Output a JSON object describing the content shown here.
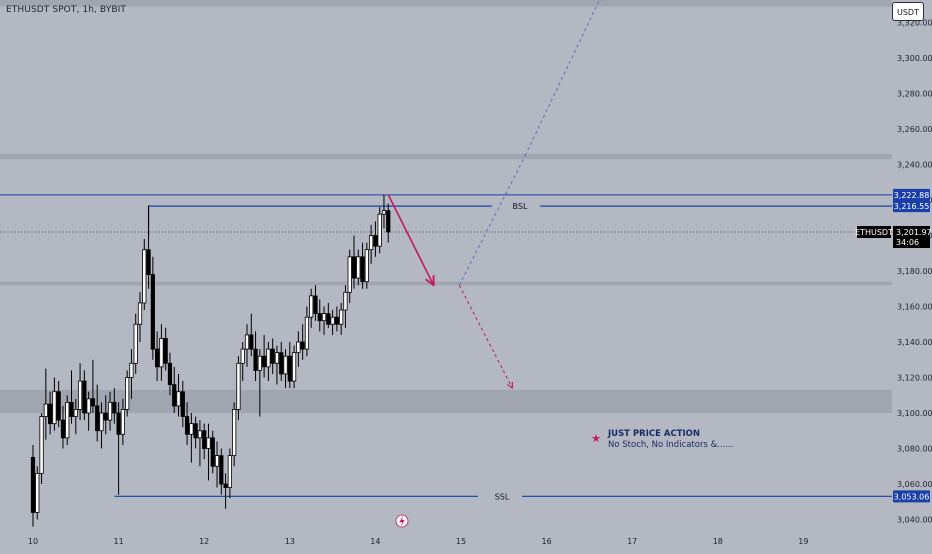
{
  "header": {
    "title": "ETHUSDT SPOT, 1h, BYBIT",
    "currency_label": "USDT"
  },
  "chart_data": {
    "type": "candlestick",
    "symbol": "ETHUSDT",
    "x_ticks": [
      "10",
      "11",
      "12",
      "13",
      "14",
      "15",
      "16",
      "17",
      "18",
      "19"
    ],
    "y_ticks": [
      "3,040.00",
      "3,060.00",
      "3,080.00",
      "3,100.00",
      "3,120.00",
      "3,140.00",
      "3,160.00",
      "3,180.00",
      "3,200.00",
      "3,220.00",
      "3,240.00",
      "3,260.00",
      "3,280.00",
      "3,300.00",
      "3,320.00"
    ],
    "ylim": [
      3038,
      3338
    ],
    "price_badges": {
      "high": "3,222.88",
      "bsl": "3,216.55",
      "last_symbol": "ETHUSDT",
      "last": "3,201.97",
      "countdown": "34:06",
      "ssl": "3,053.06"
    },
    "levels": [
      {
        "label": "",
        "value": 3222.88
      },
      {
        "label": "BSL",
        "value": 3216.55
      },
      {
        "label": "",
        "value": 3201.97
      },
      {
        "label": "SSL",
        "value": 3053.06
      }
    ],
    "zones": [
      {
        "from": 3100,
        "to": 3113
      },
      {
        "from": 3172,
        "to": 3174
      },
      {
        "from": 3243,
        "to": 3246
      },
      {
        "from": 3329,
        "to": 3338
      }
    ],
    "candles": [
      {
        "t": 10.0,
        "o": 3075,
        "h": 3082,
        "l": 3036,
        "c": 3044
      },
      {
        "t": 10.05,
        "o": 3044,
        "h": 3070,
        "l": 3040,
        "c": 3066
      },
      {
        "t": 10.1,
        "o": 3066,
        "h": 3100,
        "l": 3060,
        "c": 3098
      },
      {
        "t": 10.15,
        "o": 3098,
        "h": 3125,
        "l": 3085,
        "c": 3105
      },
      {
        "t": 10.2,
        "o": 3105,
        "h": 3112,
        "l": 3088,
        "c": 3094
      },
      {
        "t": 10.25,
        "o": 3094,
        "h": 3120,
        "l": 3090,
        "c": 3112
      },
      {
        "t": 10.3,
        "o": 3112,
        "h": 3118,
        "l": 3092,
        "c": 3096
      },
      {
        "t": 10.35,
        "o": 3096,
        "h": 3104,
        "l": 3080,
        "c": 3086
      },
      {
        "t": 10.4,
        "o": 3086,
        "h": 3110,
        "l": 3082,
        "c": 3106
      },
      {
        "t": 10.45,
        "o": 3106,
        "h": 3124,
        "l": 3094,
        "c": 3098
      },
      {
        "t": 10.5,
        "o": 3098,
        "h": 3108,
        "l": 3088,
        "c": 3102
      },
      {
        "t": 10.55,
        "o": 3102,
        "h": 3128,
        "l": 3096,
        "c": 3118
      },
      {
        "t": 10.6,
        "o": 3118,
        "h": 3124,
        "l": 3096,
        "c": 3100
      },
      {
        "t": 10.65,
        "o": 3100,
        "h": 3112,
        "l": 3090,
        "c": 3108
      },
      {
        "t": 10.7,
        "o": 3108,
        "h": 3130,
        "l": 3100,
        "c": 3104
      },
      {
        "t": 10.75,
        "o": 3104,
        "h": 3116,
        "l": 3084,
        "c": 3090
      },
      {
        "t": 10.8,
        "o": 3090,
        "h": 3106,
        "l": 3080,
        "c": 3100
      },
      {
        "t": 10.85,
        "o": 3100,
        "h": 3110,
        "l": 3088,
        "c": 3096
      },
      {
        "t": 10.9,
        "o": 3096,
        "h": 3112,
        "l": 3090,
        "c": 3106
      },
      {
        "t": 10.95,
        "o": 3106,
        "h": 3114,
        "l": 3094,
        "c": 3100
      },
      {
        "t": 11.0,
        "o": 3100,
        "h": 3106,
        "l": 3054,
        "c": 3088
      },
      {
        "t": 11.05,
        "o": 3088,
        "h": 3108,
        "l": 3082,
        "c": 3102
      },
      {
        "t": 11.1,
        "o": 3102,
        "h": 3124,
        "l": 3098,
        "c": 3120
      },
      {
        "t": 11.15,
        "o": 3120,
        "h": 3136,
        "l": 3108,
        "c": 3128
      },
      {
        "t": 11.2,
        "o": 3128,
        "h": 3156,
        "l": 3122,
        "c": 3150
      },
      {
        "t": 11.25,
        "o": 3150,
        "h": 3168,
        "l": 3140,
        "c": 3162
      },
      {
        "t": 11.3,
        "o": 3162,
        "h": 3198,
        "l": 3158,
        "c": 3192
      },
      {
        "t": 11.35,
        "o": 3192,
        "h": 3217,
        "l": 3170,
        "c": 3178
      },
      {
        "t": 11.4,
        "o": 3178,
        "h": 3188,
        "l": 3130,
        "c": 3136
      },
      {
        "t": 11.45,
        "o": 3136,
        "h": 3146,
        "l": 3118,
        "c": 3126
      },
      {
        "t": 11.5,
        "o": 3126,
        "h": 3150,
        "l": 3118,
        "c": 3142
      },
      {
        "t": 11.55,
        "o": 3142,
        "h": 3148,
        "l": 3124,
        "c": 3128
      },
      {
        "t": 11.6,
        "o": 3128,
        "h": 3134,
        "l": 3110,
        "c": 3116
      },
      {
        "t": 11.65,
        "o": 3116,
        "h": 3126,
        "l": 3100,
        "c": 3104
      },
      {
        "t": 11.7,
        "o": 3104,
        "h": 3122,
        "l": 3098,
        "c": 3112
      },
      {
        "t": 11.75,
        "o": 3112,
        "h": 3118,
        "l": 3092,
        "c": 3098
      },
      {
        "t": 11.8,
        "o": 3098,
        "h": 3106,
        "l": 3082,
        "c": 3088
      },
      {
        "t": 11.85,
        "o": 3088,
        "h": 3100,
        "l": 3072,
        "c": 3094
      },
      {
        "t": 11.9,
        "o": 3094,
        "h": 3098,
        "l": 3080,
        "c": 3086
      },
      {
        "t": 11.95,
        "o": 3086,
        "h": 3096,
        "l": 3070,
        "c": 3090
      },
      {
        "t": 12.0,
        "o": 3090,
        "h": 3094,
        "l": 3074,
        "c": 3080
      },
      {
        "t": 12.05,
        "o": 3080,
        "h": 3094,
        "l": 3062,
        "c": 3086
      },
      {
        "t": 12.1,
        "o": 3086,
        "h": 3090,
        "l": 3066,
        "c": 3070
      },
      {
        "t": 12.15,
        "o": 3070,
        "h": 3084,
        "l": 3058,
        "c": 3076
      },
      {
        "t": 12.2,
        "o": 3076,
        "h": 3080,
        "l": 3054,
        "c": 3060
      },
      {
        "t": 12.25,
        "o": 3060,
        "h": 3066,
        "l": 3046,
        "c": 3058
      },
      {
        "t": 12.3,
        "o": 3058,
        "h": 3080,
        "l": 3052,
        "c": 3076
      },
      {
        "t": 12.35,
        "o": 3076,
        "h": 3106,
        "l": 3070,
        "c": 3102
      },
      {
        "t": 12.4,
        "o": 3102,
        "h": 3132,
        "l": 3096,
        "c": 3128
      },
      {
        "t": 12.45,
        "o": 3128,
        "h": 3140,
        "l": 3118,
        "c": 3136
      },
      {
        "t": 12.5,
        "o": 3136,
        "h": 3150,
        "l": 3126,
        "c": 3144
      },
      {
        "t": 12.55,
        "o": 3144,
        "h": 3156,
        "l": 3132,
        "c": 3136
      },
      {
        "t": 12.6,
        "o": 3136,
        "h": 3146,
        "l": 3118,
        "c": 3124
      },
      {
        "t": 12.65,
        "o": 3124,
        "h": 3136,
        "l": 3098,
        "c": 3132
      },
      {
        "t": 12.7,
        "o": 3132,
        "h": 3144,
        "l": 3120,
        "c": 3126
      },
      {
        "t": 12.75,
        "o": 3126,
        "h": 3140,
        "l": 3118,
        "c": 3136
      },
      {
        "t": 12.8,
        "o": 3136,
        "h": 3142,
        "l": 3122,
        "c": 3128
      },
      {
        "t": 12.85,
        "o": 3128,
        "h": 3138,
        "l": 3116,
        "c": 3134
      },
      {
        "t": 12.9,
        "o": 3134,
        "h": 3140,
        "l": 3118,
        "c": 3122
      },
      {
        "t": 12.95,
        "o": 3122,
        "h": 3136,
        "l": 3114,
        "c": 3132
      },
      {
        "t": 13.0,
        "o": 3132,
        "h": 3140,
        "l": 3114,
        "c": 3118
      },
      {
        "t": 13.05,
        "o": 3118,
        "h": 3138,
        "l": 3114,
        "c": 3134
      },
      {
        "t": 13.1,
        "o": 3134,
        "h": 3146,
        "l": 3126,
        "c": 3140
      },
      {
        "t": 13.15,
        "o": 3140,
        "h": 3150,
        "l": 3130,
        "c": 3136
      },
      {
        "t": 13.2,
        "o": 3136,
        "h": 3160,
        "l": 3132,
        "c": 3154
      },
      {
        "t": 13.25,
        "o": 3154,
        "h": 3170,
        "l": 3148,
        "c": 3166
      },
      {
        "t": 13.3,
        "o": 3166,
        "h": 3172,
        "l": 3152,
        "c": 3156
      },
      {
        "t": 13.35,
        "o": 3156,
        "h": 3164,
        "l": 3146,
        "c": 3152
      },
      {
        "t": 13.4,
        "o": 3152,
        "h": 3160,
        "l": 3144,
        "c": 3156
      },
      {
        "t": 13.45,
        "o": 3156,
        "h": 3162,
        "l": 3148,
        "c": 3150
      },
      {
        "t": 13.5,
        "o": 3150,
        "h": 3158,
        "l": 3144,
        "c": 3154
      },
      {
        "t": 13.55,
        "o": 3154,
        "h": 3160,
        "l": 3146,
        "c": 3150
      },
      {
        "t": 13.6,
        "o": 3150,
        "h": 3162,
        "l": 3144,
        "c": 3158
      },
      {
        "t": 13.65,
        "o": 3158,
        "h": 3172,
        "l": 3148,
        "c": 3168
      },
      {
        "t": 13.7,
        "o": 3168,
        "h": 3192,
        "l": 3162,
        "c": 3188
      },
      {
        "t": 13.75,
        "o": 3188,
        "h": 3200,
        "l": 3170,
        "c": 3176
      },
      {
        "t": 13.8,
        "o": 3176,
        "h": 3192,
        "l": 3172,
        "c": 3188
      },
      {
        "t": 13.85,
        "o": 3188,
        "h": 3196,
        "l": 3170,
        "c": 3174
      },
      {
        "t": 13.9,
        "o": 3174,
        "h": 3196,
        "l": 3170,
        "c": 3192
      },
      {
        "t": 13.95,
        "o": 3192,
        "h": 3206,
        "l": 3184,
        "c": 3200
      },
      {
        "t": 14.0,
        "o": 3200,
        "h": 3208,
        "l": 3188,
        "c": 3194
      },
      {
        "t": 14.05,
        "o": 3194,
        "h": 3216,
        "l": 3190,
        "c": 3212
      },
      {
        "t": 14.1,
        "o": 3212,
        "h": 3223,
        "l": 3204,
        "c": 3214
      },
      {
        "t": 14.15,
        "o": 3214,
        "h": 3218,
        "l": 3196,
        "c": 3202
      }
    ],
    "arrows": [
      {
        "style": "solid",
        "color": "#c2185b",
        "from": {
          "t": 14.15,
          "v": 3223
        },
        "to": {
          "t": 14.68,
          "v": 3172
        }
      },
      {
        "style": "dashed",
        "color": "#5c6bc0",
        "from": {
          "t": 14.98,
          "v": 3172
        },
        "to": {
          "t": 15.75,
          "v": 3245
        }
      },
      {
        "style": "dashed",
        "color": "#5c6bc0",
        "from": {
          "t": 15.75,
          "v": 3245
        },
        "to": {
          "t": 16.65,
          "v": 3336
        }
      },
      {
        "style": "dashed",
        "color": "#c2185b",
        "from": {
          "t": 14.98,
          "v": 3172
        },
        "to": {
          "t": 15.6,
          "v": 3114
        }
      }
    ],
    "note": {
      "title": "JUST PRICE ACTION",
      "subtitle": "No Stoch, No Indicators &......"
    }
  },
  "colors": {
    "background": "#b3b8c3",
    "up": "#ffffff",
    "down": "#000000",
    "level_line": "#1a3fa8",
    "badge_blue": "#1a3fa8",
    "badge_black": "#000000",
    "zone": "#9ca1ac",
    "accent_red": "#c2185b",
    "accent_blue": "#5c6bc0"
  },
  "icons": {
    "note": "star-icon",
    "alert": "lightning-icon"
  }
}
